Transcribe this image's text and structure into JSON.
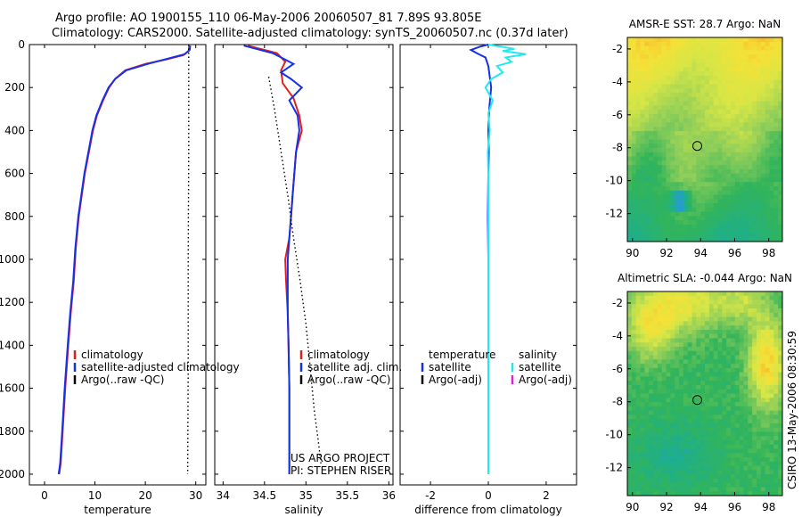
{
  "header": {
    "title_line1": "Argo profile: AO 1900155_110 06-May-2006 20060507_81 7.89S 93.805E",
    "title_line2": "Climatology: CARS2000. Satellite-adjusted climatology: synTS_20060507.nc (0.37d later)"
  },
  "side_label": "CSIRO 13-May-2006 08:30:59",
  "colors": {
    "climatology": "#e0201c",
    "satellite": "#1530e8",
    "argo": "#000000",
    "cyan": "#22e8f0",
    "magenta": "#e020d0"
  },
  "chart_data": [
    {
      "type": "line",
      "panel": "temperature",
      "xlabel": "temperature",
      "xlim": [
        -3,
        32
      ],
      "ylim": [
        2050,
        0
      ],
      "xticks": [
        0,
        10,
        20,
        30
      ],
      "yticks": [
        0,
        200,
        400,
        600,
        800,
        1000,
        1200,
        1400,
        1600,
        1800,
        2000
      ],
      "series": [
        {
          "name": "climatology",
          "color": "#e0201c",
          "points": [
            [
              28.7,
              5
            ],
            [
              28.6,
              30
            ],
            [
              27.5,
              50
            ],
            [
              24,
              70
            ],
            [
              20,
              90
            ],
            [
              16,
              120
            ],
            [
              14,
              160
            ],
            [
              12.8,
              200
            ],
            [
              11.6,
              260
            ],
            [
              10.4,
              330
            ],
            [
              9.6,
              400
            ],
            [
              8.8,
              500
            ],
            [
              8,
              600
            ],
            [
              7.4,
              700
            ],
            [
              6.8,
              800
            ],
            [
              6.2,
              950
            ],
            [
              5.8,
              1100
            ],
            [
              5.2,
              1250
            ],
            [
              4.7,
              1400
            ],
            [
              4.1,
              1600
            ],
            [
              3.6,
              1800
            ],
            [
              3.2,
              1950
            ],
            [
              2.9,
              2000
            ]
          ]
        },
        {
          "name": "satellite-adjusted climatology",
          "color": "#1530e8",
          "points": [
            [
              28.9,
              5
            ],
            [
              28.8,
              25
            ],
            [
              27.8,
              45
            ],
            [
              24.5,
              65
            ],
            [
              20.5,
              90
            ],
            [
              16.2,
              120
            ],
            [
              14,
              160
            ],
            [
              12.7,
              200
            ],
            [
              11.5,
              260
            ],
            [
              10.3,
              330
            ],
            [
              9.5,
              400
            ],
            [
              8.7,
              500
            ],
            [
              7.9,
              600
            ],
            [
              7.3,
              700
            ],
            [
              6.7,
              800
            ],
            [
              6.1,
              950
            ],
            [
              5.7,
              1100
            ],
            [
              5.1,
              1250
            ],
            [
              4.6,
              1400
            ],
            [
              4,
              1600
            ],
            [
              3.5,
              1800
            ],
            [
              3.1,
              1950
            ],
            [
              2.8,
              2000
            ]
          ]
        },
        {
          "name": "Argo(..raw -QC)",
          "color": "#000000",
          "dotted": true,
          "points": [
            [
              28.6,
              0
            ],
            [
              28.6,
              500
            ],
            [
              28.5,
              1000
            ],
            [
              28.5,
              1500
            ],
            [
              28.4,
              2000
            ]
          ]
        }
      ]
    },
    {
      "type": "line",
      "panel": "salinity",
      "xlabel": "salinity",
      "xlim": [
        33.9,
        36.05
      ],
      "ylim": [
        2050,
        0
      ],
      "xticks": [
        34,
        34.5,
        35,
        35.5,
        36
      ],
      "tick_labels": [
        "34",
        "34.5",
        "35",
        "35.5",
        "36"
      ],
      "series": [
        {
          "name": "climatology",
          "color": "#e0201c",
          "points": [
            [
              34.3,
              5
            ],
            [
              34.45,
              20
            ],
            [
              34.65,
              40
            ],
            [
              34.75,
              80
            ],
            [
              34.7,
              120
            ],
            [
              34.72,
              180
            ],
            [
              34.85,
              250
            ],
            [
              34.92,
              330
            ],
            [
              34.95,
              400
            ],
            [
              34.88,
              500
            ],
            [
              34.86,
              600
            ],
            [
              34.84,
              700
            ],
            [
              34.82,
              800
            ],
            [
              34.8,
              900
            ],
            [
              34.75,
              1000
            ],
            [
              34.76,
              1100
            ],
            [
              34.78,
              1250
            ],
            [
              34.79,
              1400
            ],
            [
              34.8,
              1600
            ],
            [
              34.8,
              1800
            ],
            [
              34.8,
              2000
            ]
          ]
        },
        {
          "name": "satellite adj. clim.",
          "color": "#1530e8",
          "points": [
            [
              34.25,
              5
            ],
            [
              34.4,
              20
            ],
            [
              34.6,
              40
            ],
            [
              34.75,
              70
            ],
            [
              34.85,
              90
            ],
            [
              34.7,
              130
            ],
            [
              34.82,
              160
            ],
            [
              34.95,
              200
            ],
            [
              34.8,
              260
            ],
            [
              34.9,
              330
            ],
            [
              34.92,
              400
            ],
            [
              34.88,
              500
            ],
            [
              34.86,
              600
            ],
            [
              34.84,
              700
            ],
            [
              34.82,
              800
            ],
            [
              34.8,
              900
            ],
            [
              34.78,
              1000
            ],
            [
              34.78,
              1100
            ],
            [
              34.78,
              1250
            ],
            [
              34.79,
              1400
            ],
            [
              34.8,
              1600
            ],
            [
              34.8,
              1800
            ],
            [
              34.8,
              2000
            ]
          ]
        },
        {
          "name": "Argo(..raw -QC)",
          "color": "#000000",
          "dotted": true,
          "points": [
            [
              34.55,
              150
            ],
            [
              34.62,
              300
            ],
            [
              34.7,
              500
            ],
            [
              34.78,
              700
            ],
            [
              34.85,
              900
            ],
            [
              34.93,
              1100
            ],
            [
              35,
              1300
            ],
            [
              35.05,
              1500
            ],
            [
              35.1,
              1700
            ],
            [
              35.15,
              1850
            ],
            [
              35.18,
              1950
            ]
          ]
        }
      ],
      "annotation": [
        "US ARGO PROJECT",
        "PI: STEPHEN RISER"
      ]
    },
    {
      "type": "line",
      "panel": "difference",
      "xlabel": "difference from climatology",
      "xlim": [
        -3.05,
        3.05
      ],
      "ylim": [
        2050,
        0
      ],
      "xticks": [
        -2,
        0,
        2
      ],
      "tick_labels": [
        "-2",
        "0",
        "2"
      ],
      "legend_groups": [
        {
          "heading": "temperature",
          "items": [
            {
              "label": "satellite",
              "color": "#1530e8"
            },
            {
              "label": "Argo(-adj)",
              "color": "#000000"
            }
          ]
        },
        {
          "heading": "salinity",
          "items": [
            {
              "label": "satellite",
              "color": "#22e8f0"
            },
            {
              "label": "Argo(-adj)",
              "color": "#e020d0"
            }
          ]
        }
      ],
      "series": [
        {
          "name": "temperature satellite",
          "color": "#1530e8",
          "points": [
            [
              0,
              0
            ],
            [
              -0.3,
              10
            ],
            [
              -0.6,
              25
            ],
            [
              -0.4,
              40
            ],
            [
              -0.1,
              60
            ],
            [
              0,
              100
            ],
            [
              0.05,
              150
            ],
            [
              0.1,
              200
            ],
            [
              0.03,
              300
            ],
            [
              0,
              400
            ],
            [
              0.02,
              500
            ],
            [
              0,
              600
            ],
            [
              -0.02,
              800
            ],
            [
              0,
              1000
            ],
            [
              0,
              1500
            ],
            [
              0,
              2000
            ]
          ]
        },
        {
          "name": "salinity satellite",
          "color": "#22e8f0",
          "points": [
            [
              0,
              0
            ],
            [
              0.9,
              20
            ],
            [
              0.5,
              30
            ],
            [
              1.3,
              45
            ],
            [
              0.6,
              60
            ],
            [
              0.8,
              80
            ],
            [
              0.3,
              100
            ],
            [
              0.5,
              130
            ],
            [
              0.1,
              160
            ],
            [
              -0.1,
              200
            ],
            [
              0.15,
              260
            ],
            [
              0,
              320
            ],
            [
              0.05,
              400
            ],
            [
              -0.02,
              500
            ],
            [
              0,
              600
            ],
            [
              0,
              800
            ],
            [
              0,
              1000
            ],
            [
              0,
              1500
            ],
            [
              0,
              2000
            ]
          ]
        }
      ]
    },
    {
      "type": "heatmap",
      "panel": "sst-map",
      "title": "AMSR-E SST: 28.7 Argo: NaN",
      "xlim": [
        89.7,
        98.8
      ],
      "ylim": [
        -13.7,
        -1.3
      ],
      "xticks": [
        90,
        92,
        94,
        96,
        98
      ],
      "yticks": [
        -2,
        -4,
        -6,
        -8,
        -10,
        -12
      ],
      "marker": {
        "lon": 93.805,
        "lat": -7.89
      }
    },
    {
      "type": "heatmap",
      "panel": "sla-map",
      "title": "Altimetric SLA: -0.044 Argo: NaN",
      "xlim": [
        89.7,
        98.8
      ],
      "ylim": [
        -13.7,
        -1.3
      ],
      "xticks": [
        90,
        92,
        94,
        96,
        98
      ],
      "yticks": [
        -2,
        -4,
        -6,
        -8,
        -10,
        -12
      ],
      "marker": {
        "lon": 93.805,
        "lat": -7.89
      }
    }
  ]
}
